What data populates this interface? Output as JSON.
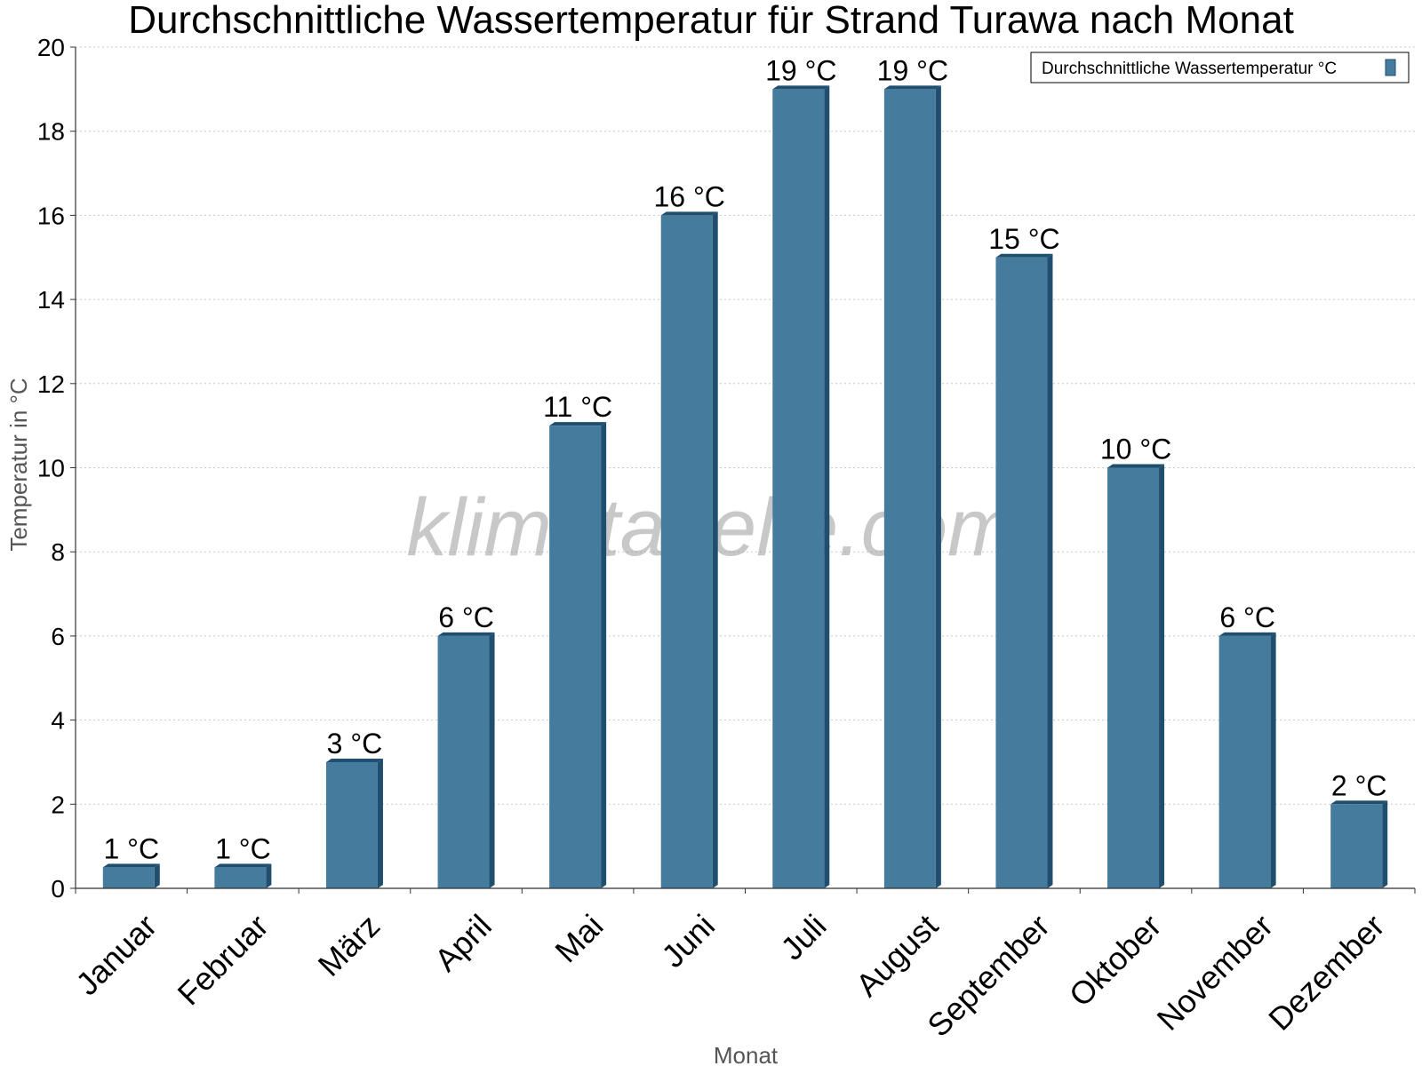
{
  "chart_data": {
    "type": "bar",
    "title": "Durchschnittliche Wassertemperatur für Strand Turawa nach Monat",
    "xlabel": "Monat",
    "ylabel": "Temperatur in °C",
    "categories": [
      "Januar",
      "Februar",
      "März",
      "April",
      "Mai",
      "Juni",
      "Juli",
      "August",
      "September",
      "Oktober",
      "November",
      "Dezember"
    ],
    "series": [
      {
        "name": "Durchschnittliche Wassertemperatur °C",
        "values": [
          0.5,
          0.5,
          3,
          6,
          11,
          16,
          19,
          19,
          15,
          10,
          6,
          2
        ],
        "data_labels": [
          "1 °C",
          "1 °C",
          "3 °C",
          "6 °C",
          "11 °C",
          "16 °C",
          "19 °C",
          "19 °C",
          "15 °C",
          "10 °C",
          "6 °C",
          "2 °C"
        ],
        "color": "#457b9d"
      }
    ],
    "ylim": [
      0,
      20
    ],
    "yticks": [
      "0",
      "2",
      "4",
      "6",
      "8",
      "10",
      "12",
      "14",
      "16",
      "18",
      "20"
    ],
    "grid": true,
    "legend_position": "top-right",
    "watermark": "klimatabelle.com"
  },
  "colors": {
    "bar_face": "#457b9d",
    "bar_side": "#1f4e6e",
    "grid": "#c8c8c8",
    "axis": "#333333"
  }
}
